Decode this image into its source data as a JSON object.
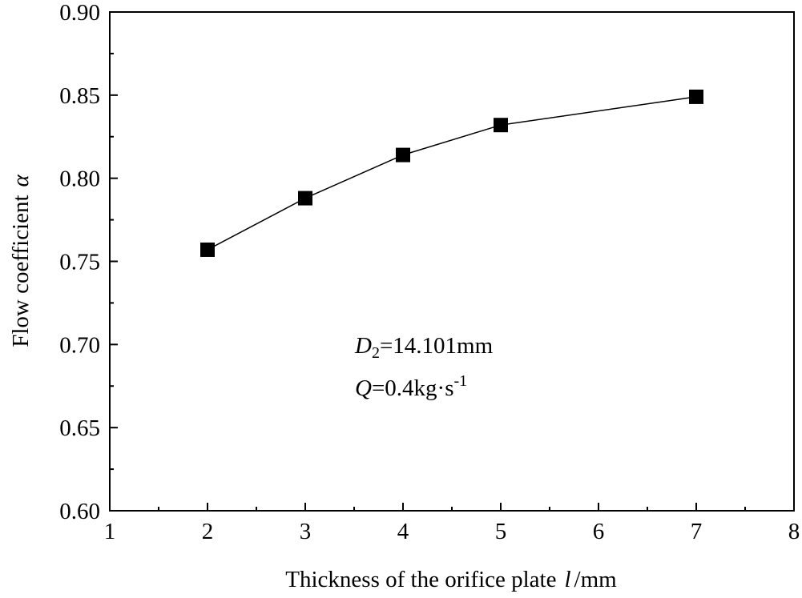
{
  "chart_data": {
    "type": "line",
    "title": "",
    "xlabel": {
      "text": "Thickness of the orifice plate",
      "symbol": "l",
      "unit": "/mm"
    },
    "ylabel": {
      "text": "Flow coefficient",
      "symbol": "α"
    },
    "xlim": [
      1,
      8
    ],
    "ylim": [
      0.6,
      0.9
    ],
    "x_ticks": [
      1,
      2,
      3,
      4,
      5,
      6,
      7,
      8
    ],
    "y_ticks": [
      0.6,
      0.65,
      0.7,
      0.75,
      0.8,
      0.85,
      0.9
    ],
    "x_tick_labels": [
      "1",
      "2",
      "3",
      "4",
      "5",
      "6",
      "7",
      "8"
    ],
    "y_tick_labels": [
      "0.60",
      "0.65",
      "0.70",
      "0.75",
      "0.80",
      "0.85",
      "0.90"
    ],
    "grid": false,
    "marker": "square",
    "series": [
      {
        "x": [
          2,
          3,
          4,
          5,
          7
        ],
        "y": [
          0.757,
          0.788,
          0.814,
          0.832,
          0.849
        ]
      }
    ],
    "annotations": [
      {
        "symbol": "D",
        "subscript": "2",
        "text": "=14.101mm"
      },
      {
        "symbol": "Q",
        "text": "=0.4kg·s",
        "superscript": "-1"
      }
    ],
    "colors": {
      "line": "#000000",
      "marker": "#000000",
      "axis": "#000000"
    }
  }
}
